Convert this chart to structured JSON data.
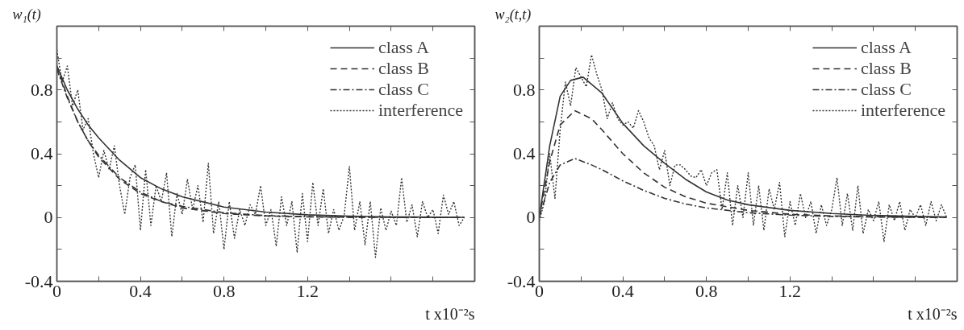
{
  "chart_data": [
    {
      "type": "line",
      "ylabel": "w₁(t)",
      "xlabel": "t x10⁻²s",
      "xlim": [
        0,
        2.0
      ],
      "ylim": [
        -0.4,
        1.2
      ],
      "xticks": [
        0,
        {
          "value": 0.2,
          "label": null
        },
        0.4,
        {
          "value": 0.6,
          "label": null
        },
        0.8,
        {
          "value": 1.0,
          "label": null
        },
        1.2,
        {
          "value": 1.4,
          "label": null
        },
        {
          "value": 1.6,
          "label": null
        },
        {
          "value": 1.8,
          "label": null
        }
      ],
      "yticks": [
        -0.4,
        {
          "value": -0.2,
          "label": null
        },
        0,
        {
          "value": 0.2,
          "label": null
        },
        0.4,
        {
          "value": 0.6,
          "label": null
        },
        0.8,
        {
          "value": 1.0,
          "label": null
        }
      ],
      "grid": false,
      "legend": "top right",
      "x": [
        0,
        0.025,
        0.05,
        0.075,
        0.1,
        0.125,
        0.15,
        0.175,
        0.2,
        0.225,
        0.25,
        0.275,
        0.3,
        0.325,
        0.35,
        0.375,
        0.4,
        0.425,
        0.45,
        0.475,
        0.5,
        0.525,
        0.55,
        0.575,
        0.6,
        0.625,
        0.65,
        0.675,
        0.7,
        0.725,
        0.75,
        0.775,
        0.8,
        0.825,
        0.85,
        0.875,
        0.9,
        0.925,
        0.95,
        0.975,
        1.0,
        1.025,
        1.05,
        1.075,
        1.1,
        1.125,
        1.15,
        1.175,
        1.2,
        1.225,
        1.25,
        1.275,
        1.3,
        1.325,
        1.35,
        1.375,
        1.4,
        1.425,
        1.45,
        1.475,
        1.5,
        1.525,
        1.55,
        1.575,
        1.6,
        1.625,
        1.65,
        1.675,
        1.7,
        1.725,
        1.75,
        1.775,
        1.8,
        1.825,
        1.85,
        1.875,
        1.9,
        1.925,
        1.95
      ],
      "series": [
        {
          "name": "class A",
          "color": "#333333",
          "line_style": "solid",
          "x": [
            0,
            0.05,
            0.1,
            0.15,
            0.2,
            0.3,
            0.4,
            0.5,
            0.6,
            0.8,
            1.0,
            1.2,
            1.4,
            1.6,
            1.8,
            1.95
          ],
          "values": [
            0.95,
            0.8,
            0.68,
            0.58,
            0.5,
            0.36,
            0.25,
            0.18,
            0.13,
            0.066,
            0.034,
            0.017,
            0.009,
            0.004,
            0.002,
            0.001
          ]
        },
        {
          "name": "class B",
          "color": "#333333",
          "line_style": "dashed",
          "x": [
            0,
            0.05,
            0.1,
            0.15,
            0.2,
            0.3,
            0.4,
            0.5,
            0.6,
            0.8,
            1.0,
            1.2,
            1.4,
            1.6,
            1.8,
            1.95
          ],
          "values": [
            0.95,
            0.76,
            0.6,
            0.48,
            0.38,
            0.24,
            0.15,
            0.1,
            0.06,
            0.025,
            0.01,
            0.004,
            0.002,
            0.001,
            0,
            0
          ]
        },
        {
          "name": "class C",
          "color": "#333333",
          "line_style": "dashdot",
          "x": [
            0,
            0.05,
            0.1,
            0.15,
            0.2,
            0.3,
            0.4,
            0.5,
            0.6,
            0.8,
            1.0,
            1.2,
            1.4,
            1.6,
            1.8,
            1.95
          ],
          "values": [
            0.93,
            0.75,
            0.6,
            0.48,
            0.39,
            0.25,
            0.16,
            0.1,
            0.07,
            0.03,
            0.012,
            0.005,
            0.002,
            0.001,
            0,
            0
          ]
        },
        {
          "name": "interference",
          "color": "#333333",
          "line_style": "dotted",
          "values": [
            1.05,
            0.85,
            0.95,
            0.7,
            0.8,
            0.55,
            0.62,
            0.4,
            0.25,
            0.42,
            0.3,
            0.45,
            0.2,
            0.02,
            0.25,
            0.33,
            -0.08,
            0.3,
            -0.05,
            0.2,
            0.1,
            0.28,
            -0.12,
            0.15,
            0.02,
            0.24,
            0.05,
            0.2,
            -0.03,
            0.34,
            -0.1,
            0.1,
            -0.2,
            0.1,
            -0.13,
            0.05,
            -0.05,
            0.08,
            0.02,
            0.2,
            -0.05,
            0.05,
            -0.18,
            0.13,
            -0.05,
            0.1,
            -0.22,
            0.15,
            -0.15,
            0.22,
            -0.05,
            0.18,
            -0.1,
            0.05,
            -0.08,
            0.01,
            0.32,
            -0.08,
            0.1,
            -0.17,
            0.1,
            -0.25,
            0.06,
            -0.08,
            0.04,
            -0.05,
            0.25,
            -0.03,
            0.08,
            -0.12,
            0.1,
            0,
            0.05,
            -0.1,
            0.14,
            0.02,
            0.1,
            -0.05,
            0
          ]
        }
      ]
    },
    {
      "type": "line",
      "ylabel": "w₂(t,t)",
      "xlabel": "t x10⁻²s",
      "xlim": [
        0,
        2.0
      ],
      "ylim": [
        -0.4,
        1.2
      ],
      "xticks": [
        0,
        {
          "value": 0.2,
          "label": null
        },
        0.4,
        {
          "value": 0.6,
          "label": null
        },
        0.8,
        {
          "value": 1.0,
          "label": null
        },
        1.2,
        {
          "value": 1.4,
          "label": null
        },
        {
          "value": 1.6,
          "label": null
        },
        {
          "value": 1.8,
          "label": null
        }
      ],
      "yticks": [
        -0.4,
        {
          "value": -0.2,
          "label": null
        },
        0,
        {
          "value": 0.2,
          "label": null
        },
        0.4,
        {
          "value": 0.6,
          "label": null
        },
        0.8,
        {
          "value": 1.0,
          "label": null
        }
      ],
      "grid": false,
      "legend": "top right",
      "x": [
        0,
        0.025,
        0.05,
        0.075,
        0.1,
        0.125,
        0.15,
        0.175,
        0.2,
        0.225,
        0.25,
        0.275,
        0.3,
        0.325,
        0.35,
        0.375,
        0.4,
        0.425,
        0.45,
        0.475,
        0.5,
        0.525,
        0.55,
        0.575,
        0.6,
        0.625,
        0.65,
        0.675,
        0.7,
        0.725,
        0.75,
        0.775,
        0.8,
        0.825,
        0.85,
        0.875,
        0.9,
        0.925,
        0.95,
        0.975,
        1.0,
        1.025,
        1.05,
        1.075,
        1.1,
        1.125,
        1.15,
        1.175,
        1.2,
        1.225,
        1.25,
        1.275,
        1.3,
        1.325,
        1.35,
        1.375,
        1.4,
        1.425,
        1.45,
        1.475,
        1.5,
        1.525,
        1.55,
        1.575,
        1.6,
        1.625,
        1.65,
        1.675,
        1.7,
        1.725,
        1.75,
        1.775,
        1.8,
        1.825,
        1.85,
        1.875,
        1.9,
        1.925,
        1.95
      ],
      "series": [
        {
          "name": "class A",
          "color": "#333333",
          "line_style": "solid",
          "x": [
            0,
            0.05,
            0.1,
            0.15,
            0.21,
            0.3,
            0.4,
            0.5,
            0.6,
            0.7,
            0.8,
            0.9,
            1.0,
            1.2,
            1.4,
            1.6,
            1.8,
            1.95
          ],
          "values": [
            0,
            0.45,
            0.76,
            0.86,
            0.88,
            0.78,
            0.59,
            0.45,
            0.34,
            0.24,
            0.16,
            0.11,
            0.08,
            0.045,
            0.025,
            0.013,
            0.007,
            0.004
          ]
        },
        {
          "name": "class B",
          "color": "#333333",
          "line_style": "dashed",
          "x": [
            0,
            0.05,
            0.1,
            0.17,
            0.25,
            0.3,
            0.4,
            0.5,
            0.6,
            0.7,
            0.8,
            1.0,
            1.2,
            1.4,
            1.6,
            1.8,
            1.95
          ],
          "values": [
            0,
            0.35,
            0.58,
            0.67,
            0.62,
            0.55,
            0.4,
            0.28,
            0.19,
            0.13,
            0.09,
            0.045,
            0.02,
            0.01,
            0.005,
            0.002,
            0.001
          ]
        },
        {
          "name": "class C",
          "color": "#333333",
          "line_style": "dashdot",
          "x": [
            0,
            0.05,
            0.1,
            0.17,
            0.25,
            0.3,
            0.4,
            0.5,
            0.6,
            0.7,
            0.8,
            1.0,
            1.2,
            1.4,
            1.6,
            1.8,
            1.95
          ],
          "values": [
            0,
            0.22,
            0.33,
            0.37,
            0.33,
            0.3,
            0.23,
            0.17,
            0.12,
            0.085,
            0.06,
            0.03,
            0.015,
            0.007,
            0.003,
            0.001,
            0
          ]
        },
        {
          "name": "interference",
          "color": "#333333",
          "line_style": "dotted",
          "values": [
            -0.02,
            0.1,
            0.4,
            0.12,
            0.55,
            0.85,
            0.7,
            0.94,
            0.88,
            0.82,
            1.02,
            0.9,
            0.8,
            0.62,
            0.72,
            0.62,
            0.58,
            0.6,
            0.56,
            0.67,
            0.6,
            0.5,
            0.45,
            0.3,
            0.42,
            0.2,
            0.33,
            0.33,
            0.3,
            0.26,
            0.25,
            0.3,
            0.2,
            0.28,
            0.3,
            0.05,
            0.28,
            -0.05,
            0.2,
            0,
            0.28,
            -0.05,
            0.2,
            -0.08,
            0.18,
            0.05,
            0.22,
            -0.12,
            0.1,
            -0.05,
            0.15,
            0,
            0.1,
            -0.1,
            0.08,
            -0.05,
            0.05,
            0.25,
            -0.05,
            0.15,
            -0.08,
            0.2,
            -0.1,
            0.05,
            -0.02,
            0.1,
            -0.15,
            0.08,
            -0.02,
            0.1,
            -0.08,
            0.05,
            0,
            0.08,
            -0.05,
            0.1,
            -0.02,
            0.08,
            0
          ]
        }
      ]
    }
  ]
}
